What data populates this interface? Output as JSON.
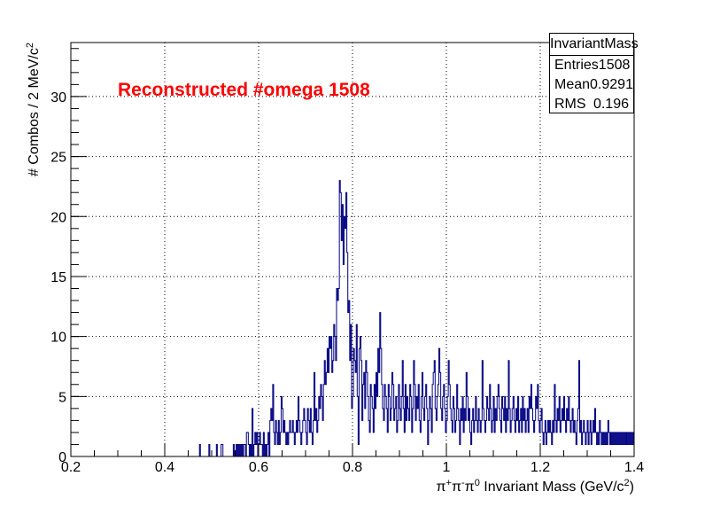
{
  "chart_data": {
    "type": "histogram",
    "title": "",
    "annotation": "Reconstructed #omega 1508",
    "xlabel": "π⁺π⁻π⁰ Invariant Mass (GeV/c²)",
    "xlabel_parts": [
      "π",
      "+",
      "π",
      "-",
      "π",
      "0",
      " Invariant Mass (GeV/c",
      "2",
      ")"
    ],
    "ylabel": "# Combos / 2 MeV/c²",
    "ylabel_parts": [
      "# Combos / 2 MeV/c",
      "2"
    ],
    "xlim": [
      0.2,
      1.4
    ],
    "ylim": [
      0,
      34.5
    ],
    "bin_width": 0.002,
    "x_ticks": [
      "0.2",
      "0.4",
      "0.6",
      "0.8",
      "1",
      "1.2",
      "1.4"
    ],
    "y_ticks": [
      "0",
      "5",
      "10",
      "15",
      "20",
      "25",
      "30"
    ],
    "grid": true,
    "line_color": "#000080",
    "annotation_color": "#ff0000",
    "stats": {
      "name": "InvariantMass",
      "entries_label": "Entries",
      "entries": "1508",
      "mean_label": "Mean",
      "mean": "0.9291",
      "rms_label": "RMS",
      "rms": "0.196"
    },
    "bins": [
      [
        0.474,
        1
      ],
      [
        0.494,
        1
      ],
      [
        0.51,
        1
      ],
      [
        0.52,
        1
      ],
      [
        0.522,
        1
      ],
      [
        0.546,
        1
      ],
      [
        0.552,
        1
      ],
      [
        0.556,
        1
      ],
      [
        0.56,
        1
      ],
      [
        0.564,
        1
      ],
      [
        0.568,
        1
      ],
      [
        0.57,
        1
      ],
      [
        0.574,
        2
      ],
      [
        0.576,
        2
      ],
      [
        0.578,
        1
      ],
      [
        0.582,
        1
      ],
      [
        0.586,
        4
      ],
      [
        0.59,
        1
      ],
      [
        0.592,
        2
      ],
      [
        0.594,
        1
      ],
      [
        0.596,
        2
      ],
      [
        0.6,
        1
      ],
      [
        0.602,
        2
      ],
      [
        0.604,
        1
      ],
      [
        0.606,
        1
      ],
      [
        0.61,
        2
      ],
      [
        0.614,
        1
      ],
      [
        0.618,
        1
      ],
      [
        0.62,
        2
      ],
      [
        0.624,
        3
      ],
      [
        0.626,
        4
      ],
      [
        0.628,
        3
      ],
      [
        0.63,
        6
      ],
      [
        0.632,
        2
      ],
      [
        0.634,
        1
      ],
      [
        0.636,
        3
      ],
      [
        0.638,
        2
      ],
      [
        0.64,
        1
      ],
      [
        0.642,
        3
      ],
      [
        0.644,
        1
      ],
      [
        0.646,
        2
      ],
      [
        0.648,
        5
      ],
      [
        0.65,
        4
      ],
      [
        0.652,
        2
      ],
      [
        0.654,
        3
      ],
      [
        0.656,
        2
      ],
      [
        0.658,
        1
      ],
      [
        0.66,
        2
      ],
      [
        0.662,
        1
      ],
      [
        0.664,
        2
      ],
      [
        0.666,
        3
      ],
      [
        0.668,
        2
      ],
      [
        0.67,
        2
      ],
      [
        0.672,
        3
      ],
      [
        0.674,
        2
      ],
      [
        0.676,
        1
      ],
      [
        0.678,
        2
      ],
      [
        0.68,
        3
      ],
      [
        0.682,
        2
      ],
      [
        0.684,
        5
      ],
      [
        0.686,
        3
      ],
      [
        0.688,
        2
      ],
      [
        0.69,
        1
      ],
      [
        0.692,
        2
      ],
      [
        0.694,
        3
      ],
      [
        0.696,
        4
      ],
      [
        0.698,
        3
      ],
      [
        0.7,
        2
      ],
      [
        0.702,
        1
      ],
      [
        0.704,
        4
      ],
      [
        0.706,
        3
      ],
      [
        0.708,
        2
      ],
      [
        0.71,
        4
      ],
      [
        0.712,
        2
      ],
      [
        0.714,
        1
      ],
      [
        0.716,
        3
      ],
      [
        0.718,
        7
      ],
      [
        0.72,
        3
      ],
      [
        0.722,
        4
      ],
      [
        0.724,
        2
      ],
      [
        0.726,
        3
      ],
      [
        0.728,
        5
      ],
      [
        0.73,
        4
      ],
      [
        0.732,
        6
      ],
      [
        0.734,
        5
      ],
      [
        0.736,
        3
      ],
      [
        0.738,
        6
      ],
      [
        0.74,
        8
      ],
      [
        0.742,
        6
      ],
      [
        0.744,
        7
      ],
      [
        0.746,
        9
      ],
      [
        0.748,
        7
      ],
      [
        0.75,
        10
      ],
      [
        0.752,
        9
      ],
      [
        0.754,
        10
      ],
      [
        0.756,
        7
      ],
      [
        0.758,
        8
      ],
      [
        0.76,
        11
      ],
      [
        0.762,
        10
      ],
      [
        0.764,
        8
      ],
      [
        0.766,
        14
      ],
      [
        0.768,
        13
      ],
      [
        0.77,
        14
      ],
      [
        0.772,
        23
      ],
      [
        0.774,
        22
      ],
      [
        0.776,
        18
      ],
      [
        0.778,
        21
      ],
      [
        0.78,
        16
      ],
      [
        0.782,
        20
      ],
      [
        0.784,
        19
      ],
      [
        0.786,
        22
      ],
      [
        0.788,
        17
      ],
      [
        0.79,
        12
      ],
      [
        0.792,
        13
      ],
      [
        0.794,
        8
      ],
      [
        0.796,
        11
      ],
      [
        0.798,
        4
      ],
      [
        0.8,
        5
      ],
      [
        0.802,
        9
      ],
      [
        0.804,
        8
      ],
      [
        0.806,
        7
      ],
      [
        0.808,
        11
      ],
      [
        0.81,
        5
      ],
      [
        0.812,
        1
      ],
      [
        0.814,
        9
      ],
      [
        0.816,
        10
      ],
      [
        0.818,
        8
      ],
      [
        0.82,
        3
      ],
      [
        0.822,
        6
      ],
      [
        0.824,
        7
      ],
      [
        0.826,
        4
      ],
      [
        0.828,
        8
      ],
      [
        0.83,
        7
      ],
      [
        0.832,
        5
      ],
      [
        0.834,
        3
      ],
      [
        0.836,
        2
      ],
      [
        0.838,
        6
      ],
      [
        0.84,
        5
      ],
      [
        0.842,
        4
      ],
      [
        0.844,
        2
      ],
      [
        0.846,
        6
      ],
      [
        0.848,
        4
      ],
      [
        0.85,
        7
      ],
      [
        0.852,
        5
      ],
      [
        0.854,
        9
      ],
      [
        0.856,
        7
      ],
      [
        0.858,
        12
      ],
      [
        0.86,
        9
      ],
      [
        0.862,
        6
      ],
      [
        0.864,
        4
      ],
      [
        0.866,
        3
      ],
      [
        0.868,
        6
      ],
      [
        0.87,
        5
      ],
      [
        0.872,
        4
      ],
      [
        0.874,
        2
      ],
      [
        0.876,
        6
      ],
      [
        0.878,
        5
      ],
      [
        0.88,
        3
      ],
      [
        0.882,
        4
      ],
      [
        0.884,
        7
      ],
      [
        0.886,
        6
      ],
      [
        0.888,
        3
      ],
      [
        0.89,
        4
      ],
      [
        0.892,
        5
      ],
      [
        0.894,
        2
      ],
      [
        0.896,
        3
      ],
      [
        0.898,
        6
      ],
      [
        0.9,
        4
      ],
      [
        0.902,
        3
      ],
      [
        0.904,
        5
      ],
      [
        0.906,
        8
      ],
      [
        0.908,
        4
      ],
      [
        0.91,
        2
      ],
      [
        0.912,
        6
      ],
      [
        0.914,
        3
      ],
      [
        0.916,
        5
      ],
      [
        0.918,
        4
      ],
      [
        0.92,
        3
      ],
      [
        0.922,
        6
      ],
      [
        0.924,
        5
      ],
      [
        0.926,
        2
      ],
      [
        0.928,
        4
      ],
      [
        0.93,
        8
      ],
      [
        0.932,
        6
      ],
      [
        0.934,
        3
      ],
      [
        0.936,
        5
      ],
      [
        0.938,
        4
      ],
      [
        0.94,
        6
      ],
      [
        0.942,
        3
      ],
      [
        0.944,
        2
      ],
      [
        0.946,
        5
      ],
      [
        0.948,
        7
      ],
      [
        0.95,
        4
      ],
      [
        0.952,
        3
      ],
      [
        0.954,
        5
      ],
      [
        0.956,
        6
      ],
      [
        0.958,
        4
      ],
      [
        0.96,
        1
      ],
      [
        0.962,
        3
      ],
      [
        0.964,
        5
      ],
      [
        0.966,
        4
      ],
      [
        0.968,
        2
      ],
      [
        0.97,
        6
      ],
      [
        0.972,
        7
      ],
      [
        0.974,
        8
      ],
      [
        0.976,
        4
      ],
      [
        0.978,
        3
      ],
      [
        0.98,
        5
      ],
      [
        0.982,
        6
      ],
      [
        0.984,
        9
      ],
      [
        0.986,
        7
      ],
      [
        0.988,
        4
      ],
      [
        0.99,
        3
      ],
      [
        0.992,
        5
      ],
      [
        0.994,
        6
      ],
      [
        0.996,
        4
      ],
      [
        0.998,
        2
      ],
      [
        1.0,
        3
      ],
      [
        1.002,
        5
      ],
      [
        1.004,
        8
      ],
      [
        1.006,
        6
      ],
      [
        1.008,
        4
      ],
      [
        1.01,
        3
      ],
      [
        1.012,
        2
      ],
      [
        1.014,
        5
      ],
      [
        1.016,
        4
      ],
      [
        1.018,
        2
      ],
      [
        1.02,
        3
      ],
      [
        1.022,
        6
      ],
      [
        1.024,
        4
      ],
      [
        1.026,
        3
      ],
      [
        1.028,
        1
      ],
      [
        1.03,
        4
      ],
      [
        1.032,
        3
      ],
      [
        1.034,
        5
      ],
      [
        1.036,
        2
      ],
      [
        1.038,
        4
      ],
      [
        1.04,
        3
      ],
      [
        1.042,
        7
      ],
      [
        1.044,
        5
      ],
      [
        1.046,
        3
      ],
      [
        1.048,
        4
      ],
      [
        1.05,
        2
      ],
      [
        1.052,
        1
      ],
      [
        1.054,
        3
      ],
      [
        1.056,
        4
      ],
      [
        1.058,
        2
      ],
      [
        1.06,
        3
      ],
      [
        1.062,
        5
      ],
      [
        1.064,
        3
      ],
      [
        1.066,
        2
      ],
      [
        1.068,
        4
      ],
      [
        1.07,
        3
      ],
      [
        1.072,
        2
      ],
      [
        1.074,
        3
      ],
      [
        1.076,
        8
      ],
      [
        1.078,
        4
      ],
      [
        1.08,
        3
      ],
      [
        1.082,
        2
      ],
      [
        1.084,
        3
      ],
      [
        1.086,
        5
      ],
      [
        1.088,
        4
      ],
      [
        1.09,
        3
      ],
      [
        1.092,
        6
      ],
      [
        1.094,
        4
      ],
      [
        1.096,
        2
      ],
      [
        1.098,
        3
      ],
      [
        1.1,
        5
      ],
      [
        1.102,
        2
      ],
      [
        1.104,
        4
      ],
      [
        1.106,
        3
      ],
      [
        1.108,
        5
      ],
      [
        1.11,
        6
      ],
      [
        1.112,
        4
      ],
      [
        1.114,
        3
      ],
      [
        1.116,
        2
      ],
      [
        1.118,
        5
      ],
      [
        1.12,
        4
      ],
      [
        1.122,
        3
      ],
      [
        1.124,
        5
      ],
      [
        1.126,
        2
      ],
      [
        1.128,
        4
      ],
      [
        1.13,
        3
      ],
      [
        1.132,
        8
      ],
      [
        1.134,
        4
      ],
      [
        1.136,
        2
      ],
      [
        1.138,
        3
      ],
      [
        1.14,
        4
      ],
      [
        1.142,
        5
      ],
      [
        1.144,
        3
      ],
      [
        1.146,
        2
      ],
      [
        1.148,
        4
      ],
      [
        1.15,
        3
      ],
      [
        1.152,
        5
      ],
      [
        1.154,
        2
      ],
      [
        1.156,
        3
      ],
      [
        1.158,
        4
      ],
      [
        1.16,
        2
      ],
      [
        1.162,
        5
      ],
      [
        1.164,
        3
      ],
      [
        1.166,
        4
      ],
      [
        1.168,
        2
      ],
      [
        1.17,
        3
      ],
      [
        1.172,
        4
      ],
      [
        1.174,
        2
      ],
      [
        1.176,
        5
      ],
      [
        1.178,
        4
      ],
      [
        1.18,
        6
      ],
      [
        1.182,
        4
      ],
      [
        1.184,
        3
      ],
      [
        1.186,
        2
      ],
      [
        1.188,
        3
      ],
      [
        1.19,
        5
      ],
      [
        1.192,
        4
      ],
      [
        1.194,
        6
      ],
      [
        1.196,
        3
      ],
      [
        1.198,
        2
      ],
      [
        1.2,
        3
      ],
      [
        1.202,
        4
      ],
      [
        1.204,
        2
      ],
      [
        1.206,
        1
      ],
      [
        1.208,
        2
      ],
      [
        1.21,
        3
      ],
      [
        1.212,
        1
      ],
      [
        1.214,
        2
      ],
      [
        1.216,
        3
      ],
      [
        1.218,
        2
      ],
      [
        1.22,
        3
      ],
      [
        1.222,
        2
      ],
      [
        1.224,
        1
      ],
      [
        1.226,
        3
      ],
      [
        1.228,
        2
      ],
      [
        1.23,
        6
      ],
      [
        1.232,
        3
      ],
      [
        1.234,
        2
      ],
      [
        1.236,
        4
      ],
      [
        1.238,
        3
      ],
      [
        1.24,
        5
      ],
      [
        1.242,
        2
      ],
      [
        1.244,
        3
      ],
      [
        1.246,
        4
      ],
      [
        1.248,
        3
      ],
      [
        1.25,
        5
      ],
      [
        1.252,
        3
      ],
      [
        1.254,
        2
      ],
      [
        1.256,
        4
      ],
      [
        1.258,
        3
      ],
      [
        1.26,
        5
      ],
      [
        1.262,
        3
      ],
      [
        1.264,
        2
      ],
      [
        1.266,
        3
      ],
      [
        1.268,
        4
      ],
      [
        1.27,
        2
      ],
      [
        1.272,
        3
      ],
      [
        1.274,
        2
      ],
      [
        1.276,
        1
      ],
      [
        1.278,
        3
      ],
      [
        1.28,
        4
      ],
      [
        1.282,
        8
      ],
      [
        1.284,
        2
      ],
      [
        1.286,
        3
      ],
      [
        1.288,
        1
      ],
      [
        1.29,
        2
      ],
      [
        1.292,
        3
      ],
      [
        1.294,
        2
      ],
      [
        1.296,
        1
      ],
      [
        1.298,
        2
      ],
      [
        1.3,
        3
      ],
      [
        1.302,
        1
      ],
      [
        1.304,
        2
      ],
      [
        1.306,
        3
      ],
      [
        1.308,
        1
      ],
      [
        1.31,
        2
      ],
      [
        1.312,
        3
      ],
      [
        1.314,
        2
      ],
      [
        1.316,
        4
      ],
      [
        1.318,
        2
      ],
      [
        1.32,
        1
      ],
      [
        1.322,
        2
      ],
      [
        1.324,
        1
      ],
      [
        1.326,
        3
      ],
      [
        1.328,
        2
      ],
      [
        1.33,
        1
      ],
      [
        1.332,
        2
      ],
      [
        1.334,
        1
      ],
      [
        1.336,
        2
      ],
      [
        1.338,
        1
      ],
      [
        1.34,
        2
      ],
      [
        1.342,
        1
      ],
      [
        1.344,
        3
      ],
      [
        1.346,
        2
      ],
      [
        1.348,
        1
      ],
      [
        1.35,
        2
      ],
      [
        1.352,
        1
      ],
      [
        1.354,
        2
      ],
      [
        1.356,
        1
      ],
      [
        1.358,
        2
      ],
      [
        1.36,
        1
      ],
      [
        1.362,
        2
      ],
      [
        1.364,
        1
      ],
      [
        1.366,
        2
      ],
      [
        1.368,
        1
      ],
      [
        1.37,
        2
      ],
      [
        1.372,
        1
      ],
      [
        1.374,
        2
      ],
      [
        1.376,
        1
      ],
      [
        1.378,
        2
      ],
      [
        1.38,
        1
      ],
      [
        1.382,
        2
      ],
      [
        1.384,
        1
      ],
      [
        1.386,
        2
      ],
      [
        1.388,
        1
      ],
      [
        1.39,
        2
      ],
      [
        1.392,
        1
      ],
      [
        1.394,
        2
      ],
      [
        1.396,
        1
      ],
      [
        1.398,
        2
      ]
    ]
  }
}
